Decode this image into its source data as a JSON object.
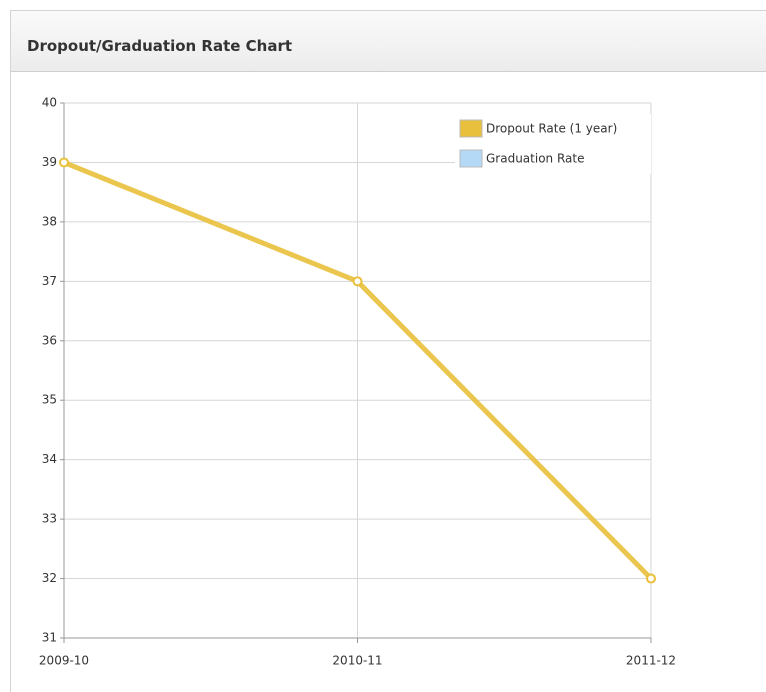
{
  "chart_data": {
    "type": "line",
    "title": "Dropout/Graduation Rate Chart",
    "categories": [
      "2009-10",
      "2010-11",
      "2011-12"
    ],
    "series": [
      {
        "name": "Dropout Rate (1 year)",
        "color": "#e9c03c",
        "values": [
          39,
          37,
          32
        ]
      },
      {
        "name": "Graduation Rate",
        "color": "#b3d9f7",
        "values": [
          null,
          null,
          null
        ]
      }
    ],
    "ylim": [
      31,
      40
    ],
    "yticks": [
      31,
      32,
      33,
      34,
      35,
      36,
      37,
      38,
      39,
      40
    ],
    "grid": true,
    "legend": "top-right"
  }
}
